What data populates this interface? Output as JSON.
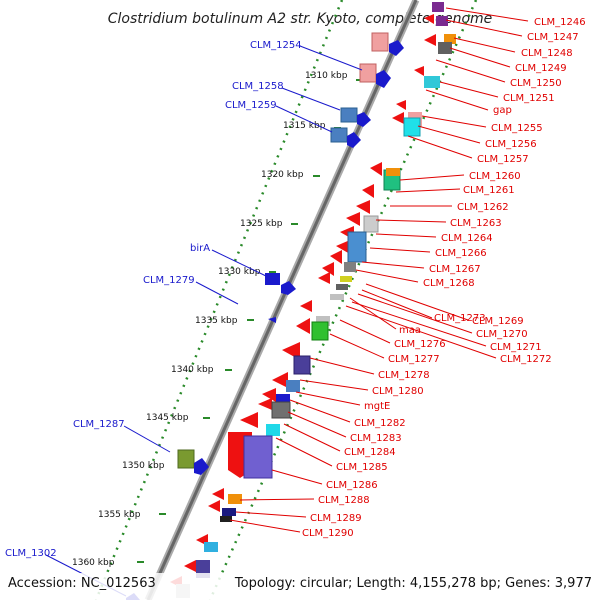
{
  "title": "Clostridium botulinum A2 str. Kyoto, complete genome",
  "accession": "Accession: NC_012563",
  "topology": "Topology: circular; Length: 4,155,278 bp; Genes: 3,977",
  "scale_labels": [
    "1310 kbp",
    "1315 kbp",
    "1320 kbp",
    "1325 kbp",
    "1330 kbp",
    "1335 kbp",
    "1340 kbp",
    "1345 kbp",
    "1350 kbp",
    "1355 kbp",
    "1360 kbp"
  ],
  "right_labels": [
    "CLM_1246",
    "CLM_1247",
    "CLM_1248",
    "CLM_1249",
    "CLM_1250",
    "CLM_1251",
    "gap",
    "CLM_1255",
    "CLM_1256",
    "CLM_1257",
    "CLM_1260",
    "CLM_1261",
    "CLM_1262",
    "CLM_1263",
    "CLM_1264",
    "CLM_1266",
    "CLM_1267",
    "CLM_1268",
    "CLM_1273",
    "CLM_1269",
    "maa",
    "CLM_1270",
    "CLM_1276",
    "CLM_1271",
    "CLM_1272",
    "CLM_1277",
    "CLM_1278",
    "CLM_1280",
    "mgtE",
    "CLM_1282",
    "CLM_1283",
    "CLM_1284",
    "CLM_1285",
    "CLM_1286",
    "CLM_1288",
    "CLM_1289",
    "CLM_1290"
  ],
  "left_labels": [
    "CLM_1254",
    "CLM_1258",
    "CLM_1259",
    "birA",
    "CLM_1279",
    "CLM_1287",
    "CLM_1302"
  ],
  "colors": {
    "red_strand": "#ee1111",
    "blue_strand": "#1a1acc",
    "backbone": "#888888",
    "tick_dots": "#2a8a2a"
  }
}
